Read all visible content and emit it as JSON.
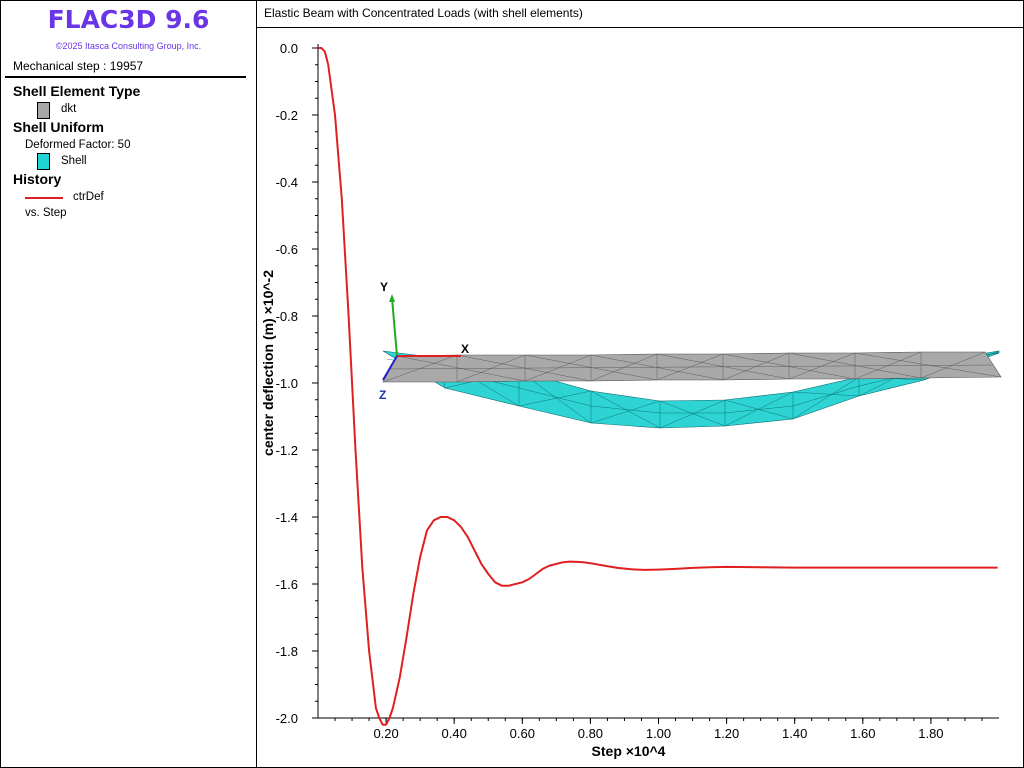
{
  "app": {
    "title": "FLAC3D 9.6",
    "copyright": "©2025 Itasca Consulting Group, Inc.",
    "mechanical_step": "Mechanical step : 19957",
    "brand_color": "#6a35e8"
  },
  "legend": {
    "shell_type": {
      "heading": "Shell Element Type",
      "item_label": "dkt",
      "item_color": "#a6a6a6"
    },
    "shell_uniform": {
      "heading": "Shell Uniform",
      "deformed_factor": "Deformed Factor: 50",
      "item_label": "Shell",
      "item_color": "#22d3d3"
    },
    "history": {
      "heading": "History",
      "item_label": "ctrDef",
      "line_color": "#e02020",
      "vs_text": "vs. Step"
    }
  },
  "chart_title": "Elastic Beam with Concentrated Loads (with shell elements)",
  "axes_labels": {
    "x": "X",
    "y": "Y",
    "z": "Z"
  },
  "chart_data": {
    "type": "line",
    "title": "Elastic Beam with Concentrated Loads (with shell elements)",
    "xlabel": "Step ×10^4",
    "ylabel": "center deflection (m) ×10^-2",
    "xlim": [
      0,
      2.0
    ],
    "ylim": [
      -2.0,
      0.0
    ],
    "xticks": [
      0.2,
      0.4,
      0.6,
      0.8,
      1.0,
      1.2,
      1.4,
      1.6,
      1.8
    ],
    "xtick_labels": [
      "0.20",
      "0.40",
      "0.60",
      "0.80",
      "1.00",
      "1.20",
      "1.40",
      "1.60",
      "1.80"
    ],
    "yticks": [
      0.0,
      -0.2,
      -0.4,
      -0.6,
      -0.8,
      -1.0,
      -1.2,
      -1.4,
      -1.6,
      -1.8,
      -2.0
    ],
    "ytick_labels": [
      "0.0",
      "-0.2",
      "-0.4",
      "-0.6",
      "-0.8",
      "-1.0",
      "-1.2",
      "-1.4",
      "-1.6",
      "-1.8",
      "-2.0"
    ],
    "grid": false,
    "series": [
      {
        "name": "ctrDef",
        "color": "#e02020",
        "x": [
          0.0,
          0.01,
          0.02,
          0.03,
          0.05,
          0.07,
          0.09,
          0.11,
          0.13,
          0.15,
          0.17,
          0.18,
          0.19,
          0.2,
          0.21,
          0.22,
          0.24,
          0.26,
          0.28,
          0.3,
          0.32,
          0.34,
          0.36,
          0.38,
          0.4,
          0.42,
          0.44,
          0.46,
          0.48,
          0.5,
          0.52,
          0.54,
          0.56,
          0.58,
          0.6,
          0.62,
          0.64,
          0.66,
          0.68,
          0.7,
          0.72,
          0.74,
          0.76,
          0.78,
          0.8,
          0.84,
          0.88,
          0.92,
          0.96,
          1.0,
          1.05,
          1.1,
          1.15,
          1.2,
          1.3,
          1.4,
          1.5,
          1.6,
          1.7,
          1.8,
          1.9,
          1.996
        ],
        "y": [
          0.0,
          0.0,
          -0.01,
          -0.05,
          -0.2,
          -0.45,
          -0.8,
          -1.2,
          -1.55,
          -1.8,
          -1.97,
          -2.0,
          -2.02,
          -2.02,
          -2.0,
          -1.97,
          -1.88,
          -1.76,
          -1.63,
          -1.52,
          -1.44,
          -1.41,
          -1.4,
          -1.4,
          -1.41,
          -1.43,
          -1.46,
          -1.5,
          -1.54,
          -1.57,
          -1.595,
          -1.605,
          -1.605,
          -1.6,
          -1.595,
          -1.585,
          -1.57,
          -1.555,
          -1.545,
          -1.54,
          -1.535,
          -1.533,
          -1.534,
          -1.535,
          -1.538,
          -1.545,
          -1.552,
          -1.556,
          -1.558,
          -1.557,
          -1.555,
          -1.552,
          -1.55,
          -1.549,
          -1.55,
          -1.551,
          -1.551,
          -1.551,
          -1.551,
          -1.551,
          -1.551,
          -1.551
        ]
      }
    ]
  }
}
